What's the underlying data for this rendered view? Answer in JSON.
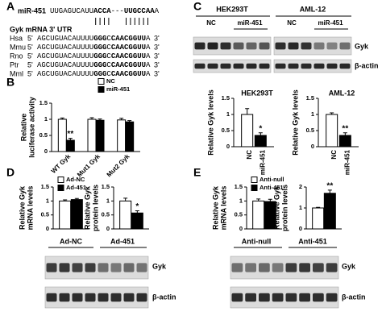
{
  "panel_labels": [
    "A",
    "B",
    "C",
    "D",
    "E"
  ],
  "panel_a": {
    "mirna_label": "miR-451",
    "mirna": [
      {
        "text": "UUGAGUCAUU"
      },
      {
        "text": "ACCA",
        "bold": true
      },
      {
        "text": "---"
      },
      {
        "text": "UUGCCAA",
        "bold": true
      },
      {
        "text": "A"
      }
    ],
    "utr_label": "Gyk mRNA 3' UTR",
    "five_prime": "5'",
    "three_prime": "3'",
    "rows": [
      {
        "species": "Hsa",
        "sequence": [
          {
            "text": "AGCUGUACAUUUU"
          },
          {
            "text": "GGG",
            "bold": true
          },
          {
            "text": "C"
          },
          {
            "text": "CAACGGUU",
            "bold": true
          },
          {
            "text": "A"
          }
        ]
      },
      {
        "species": "Mmu",
        "sequence": [
          {
            "text": "AGCUGUACAUUUU"
          },
          {
            "text": "GGG",
            "bold": true
          },
          {
            "text": "C"
          },
          {
            "text": "CAACGGUU",
            "bold": true
          },
          {
            "text": "A"
          }
        ]
      },
      {
        "species": "Rno",
        "sequence": [
          {
            "text": "AGCUGUACAUUUU"
          },
          {
            "text": "GGG",
            "bold": true
          },
          {
            "text": "C"
          },
          {
            "text": "CAACGGUU",
            "bold": true
          },
          {
            "text": "A"
          }
        ]
      },
      {
        "species": "Ptr",
        "sequence": [
          {
            "text": "AGCUGUACAUUUU"
          },
          {
            "text": "GGG",
            "bold": true
          },
          {
            "text": "C"
          },
          {
            "text": "CAACGGUU",
            "bold": true
          },
          {
            "text": "A"
          }
        ]
      },
      {
        "species": "Mml",
        "sequence": [
          {
            "text": "AGCUGUACAUUUU"
          },
          {
            "text": "GGG",
            "bold": true
          },
          {
            "text": "C"
          },
          {
            "text": "CAACGGUU",
            "bold": true
          },
          {
            "text": "A"
          }
        ]
      }
    ]
  },
  "blots": {
    "C": {
      "cells": [
        {
          "name": "HEK293T",
          "conditions": [
            "NC",
            "miR-451"
          ]
        },
        {
          "name": "AML-12",
          "conditions": [
            "NC",
            "miR-451"
          ]
        }
      ],
      "rows": [
        "Gyk",
        "β-actin"
      ]
    },
    "D": {
      "conditions": [
        "Ad-NC",
        "Ad-451"
      ],
      "rows": [
        "Gyk",
        "β-actin"
      ]
    },
    "E": {
      "conditions": [
        "Anti-null",
        "Anti-451"
      ],
      "rows": [
        "Gyk",
        "β-actin"
      ]
    }
  },
  "chart_data": [
    {
      "type": "bar",
      "ylabel": [
        "Relative",
        "luciferase activity"
      ],
      "categories": [
        "WT Gyk",
        "Mut1 Gyk",
        "Mut2 Gyk"
      ],
      "series": [
        {
          "name": "NC",
          "color": "#ffffff",
          "values": [
            1.0,
            1.0,
            0.98
          ],
          "errors": [
            0.04,
            0.05,
            0.05
          ]
        },
        {
          "name": "miR-451",
          "color": "#000000",
          "values": [
            0.35,
            0.97,
            0.92
          ],
          "errors": [
            0.06,
            0.04,
            0.04
          ]
        }
      ],
      "ylim": [
        0,
        1.5
      ],
      "yticks": [
        0,
        0.5,
        1,
        1.5
      ],
      "legend": true,
      "annotations": [
        {
          "text": "**",
          "category": "WT Gyk",
          "series": "miR-451"
        }
      ]
    },
    {
      "type": "bar",
      "title": "HEK293T",
      "ylabel": [
        "Relative Gyk levels"
      ],
      "categories": [
        "NC",
        "miR-451"
      ],
      "values": [
        1.0,
        0.35
      ],
      "errors": [
        0.18,
        0.08
      ],
      "colors": [
        "#ffffff",
        "#000000"
      ],
      "ylim": [
        0,
        1.5
      ],
      "yticks": [
        0,
        0.5,
        1,
        1.5
      ],
      "annotations": [
        {
          "text": "*",
          "category": "miR-451"
        }
      ]
    },
    {
      "type": "bar",
      "title": "AML-12",
      "ylabel": [
        "Relative Gyk levels"
      ],
      "categories": [
        "NC",
        "miR-451"
      ],
      "values": [
        1.0,
        0.35
      ],
      "errors": [
        0.05,
        0.08
      ],
      "colors": [
        "#ffffff",
        "#000000"
      ],
      "ylim": [
        0,
        1.5
      ],
      "yticks": [
        0,
        0.5,
        1,
        1.5
      ],
      "annotations": [
        {
          "text": "**",
          "category": "miR-451"
        }
      ]
    },
    {
      "type": "bar",
      "ylabel": [
        "Relative Gyk",
        "mRNA levels"
      ],
      "series": [
        {
          "name": "Ad-NC",
          "color": "#ffffff",
          "values": [
            1.0
          ],
          "errors": [
            0.04
          ]
        },
        {
          "name": "Ad-451",
          "color": "#000000",
          "values": [
            1.05
          ],
          "errors": [
            0.04
          ]
        }
      ],
      "ylim": [
        0,
        1.5
      ],
      "yticks": [
        0,
        0.5,
        1,
        1.5
      ],
      "legend": true
    },
    {
      "type": "bar",
      "ylabel": [
        "Relative Gyk",
        "protein levels"
      ],
      "series": [
        {
          "name": "Ad-NC",
          "color": "#ffffff",
          "values": [
            1.0
          ],
          "errors": [
            0.1
          ]
        },
        {
          "name": "Ad-451",
          "color": "#000000",
          "values": [
            0.57
          ],
          "errors": [
            0.08
          ]
        }
      ],
      "ylim": [
        0,
        1.5
      ],
      "yticks": [
        0,
        0.5,
        1,
        1.5
      ],
      "legend": false,
      "annotations": [
        {
          "text": "*",
          "series": "Ad-451"
        }
      ]
    },
    {
      "type": "bar",
      "ylabel": [
        "Relative Gyk",
        "mRNA levels"
      ],
      "series": [
        {
          "name": "Anti-null",
          "color": "#ffffff",
          "values": [
            1.0
          ],
          "errors": [
            0.07
          ]
        },
        {
          "name": "Anti-451",
          "color": "#000000",
          "values": [
            0.98
          ],
          "errors": [
            0.08
          ]
        }
      ],
      "ylim": [
        0,
        1.5
      ],
      "yticks": [
        0,
        0.5,
        1,
        1.5
      ],
      "legend": true
    },
    {
      "type": "bar",
      "ylabel": [
        "Relative Gyk",
        "protein levels"
      ],
      "series": [
        {
          "name": "Anti-null",
          "color": "#ffffff",
          "values": [
            1.0
          ],
          "errors": [
            0.03
          ]
        },
        {
          "name": "Anti-451",
          "color": "#000000",
          "values": [
            1.7
          ],
          "errors": [
            0.15
          ]
        }
      ],
      "ylim": [
        0,
        2
      ],
      "yticks": [
        0,
        1,
        2
      ],
      "legend": false,
      "annotations": [
        {
          "text": "**",
          "series": "Anti-451"
        }
      ]
    }
  ]
}
